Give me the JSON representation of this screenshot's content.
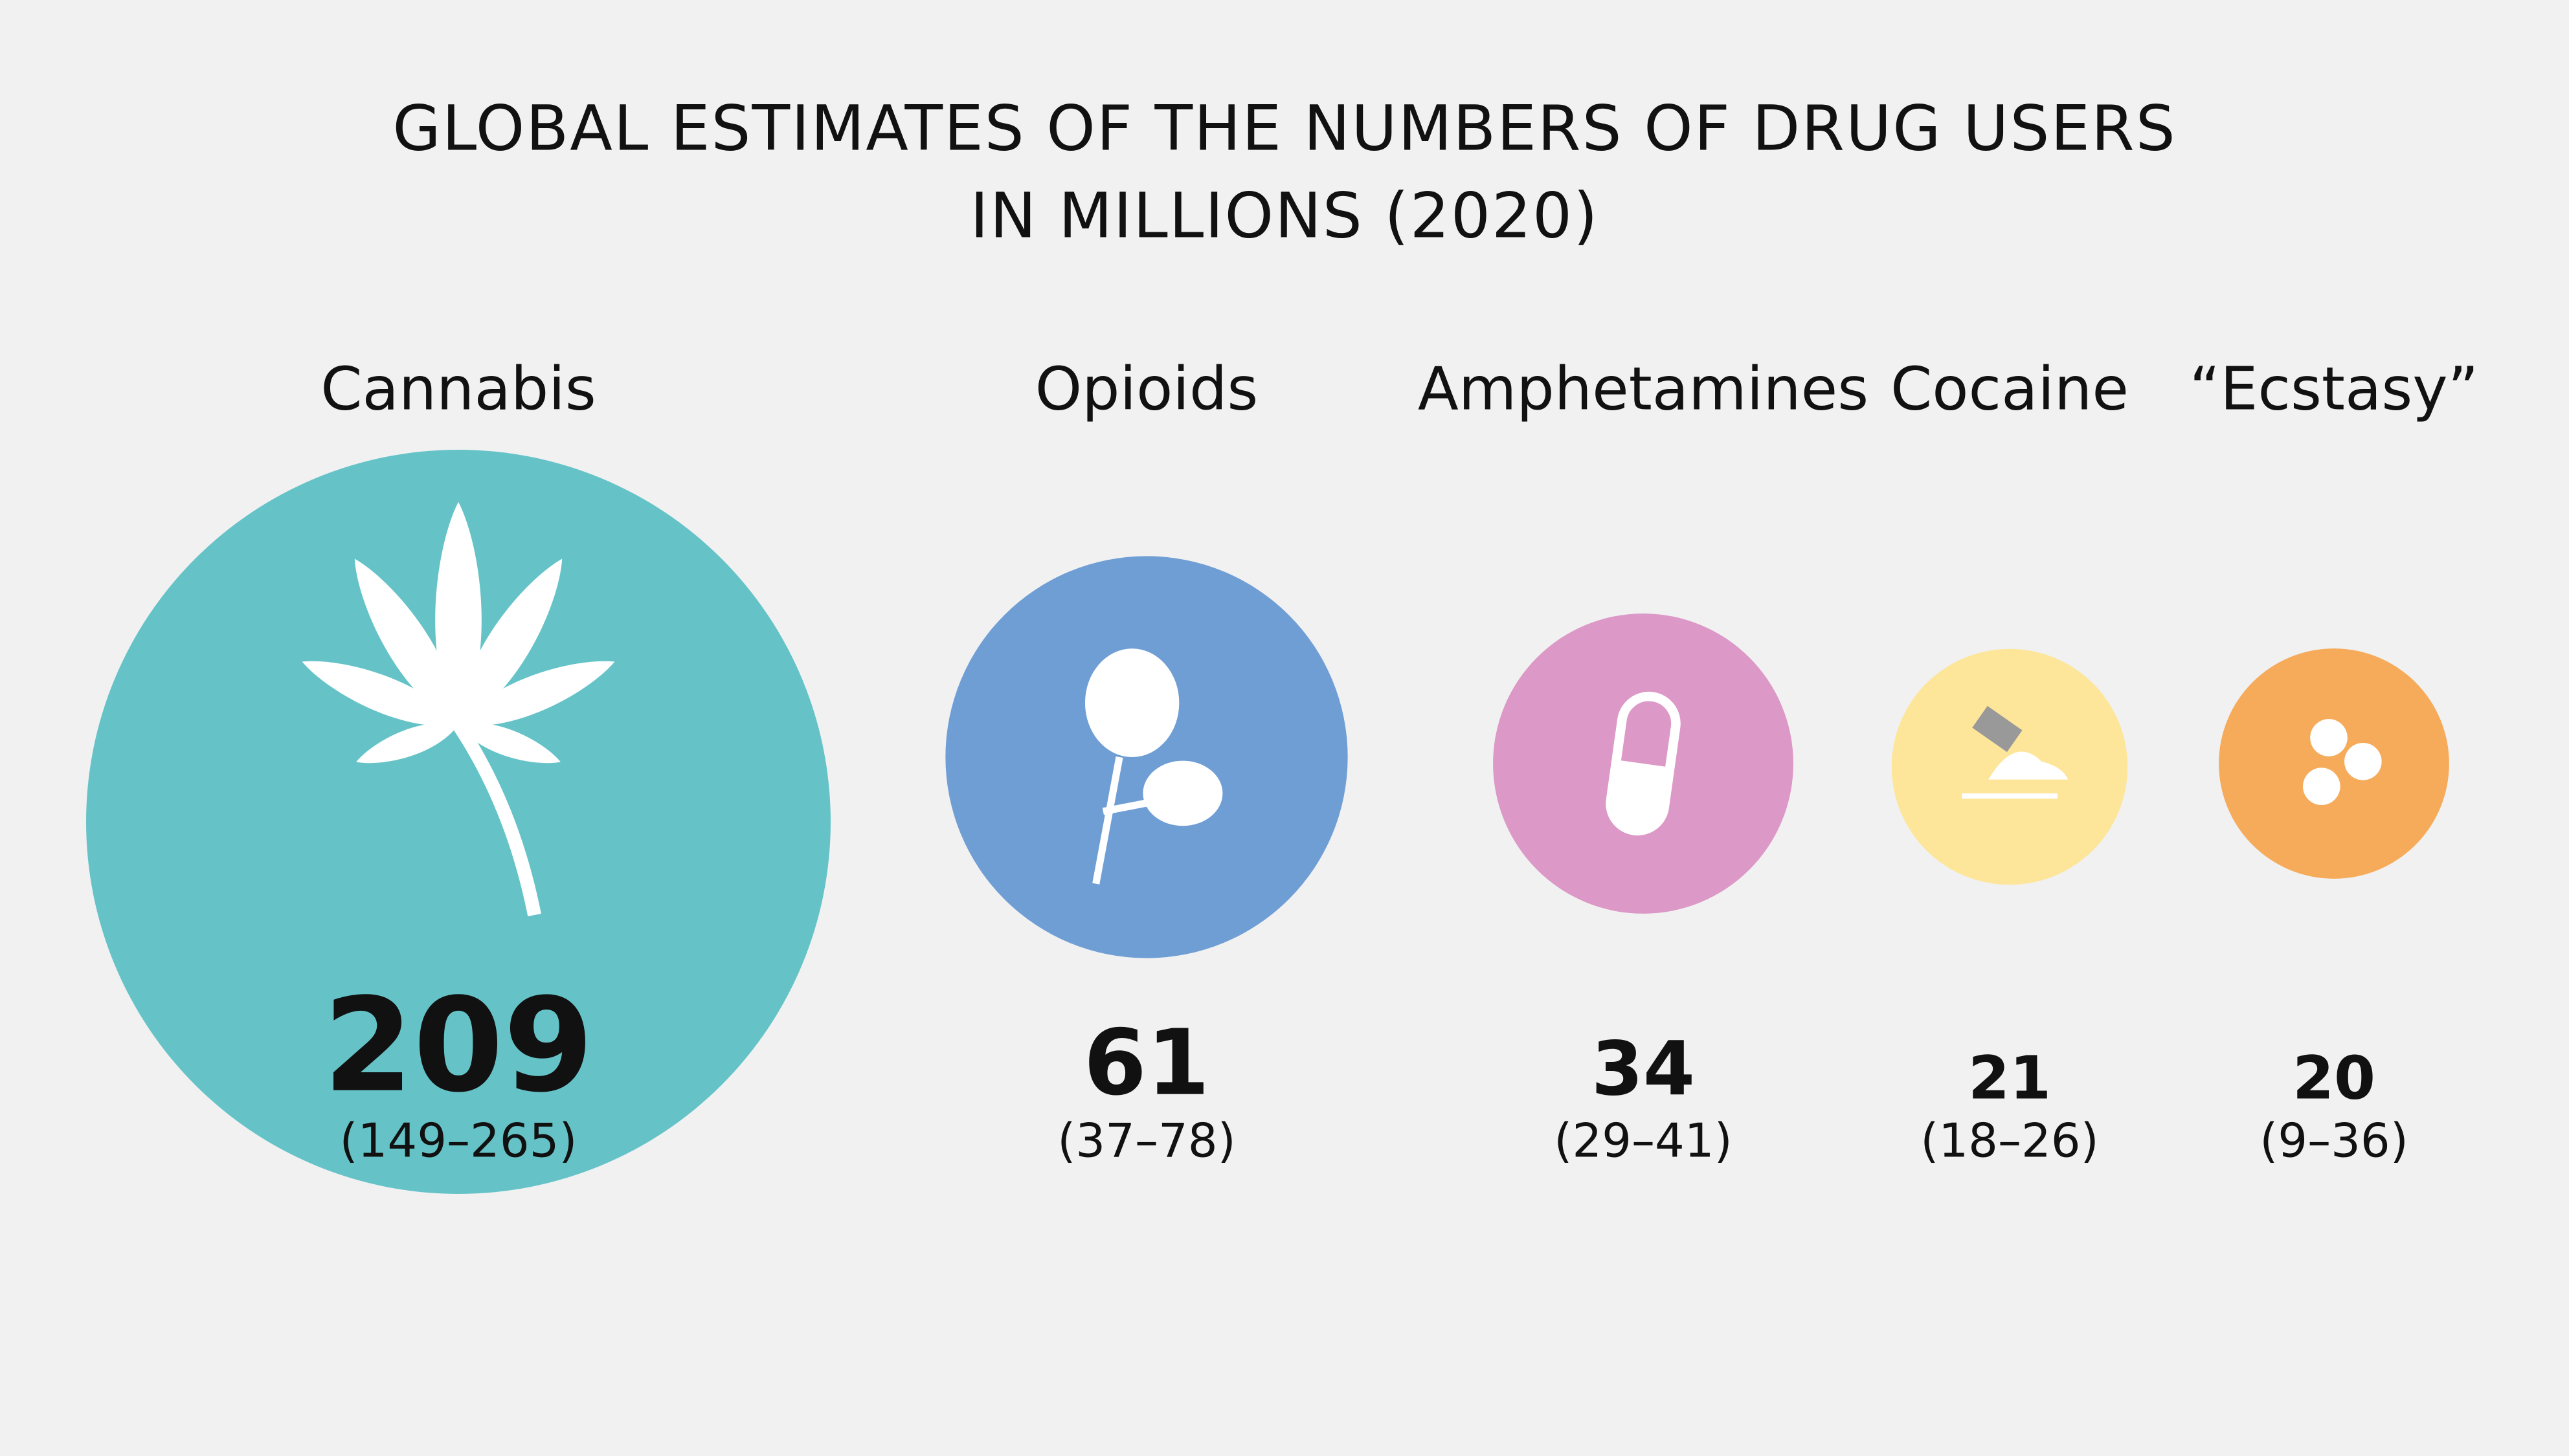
{
  "chart_data": {
    "type": "bubble",
    "title": [
      "GLOBAL ESTIMATES OF THE NUMBERS OF DRUG USERS",
      "IN MILLIONS (2020)"
    ],
    "categories": [
      "Cannabis",
      "Opioids",
      "Amphetamines",
      "Cocaine",
      "“Ecstasy”"
    ],
    "values": [
      209,
      61,
      34,
      21,
      20
    ],
    "range_labels": [
      "(149–265)",
      "(37–78)",
      "(29–41)",
      "(18–26)",
      "(9–36)"
    ],
    "colors": [
      "#65c3c8",
      "#6f9ed5",
      "#dc98c6",
      "#fde69a",
      "#f5ab5a"
    ]
  }
}
